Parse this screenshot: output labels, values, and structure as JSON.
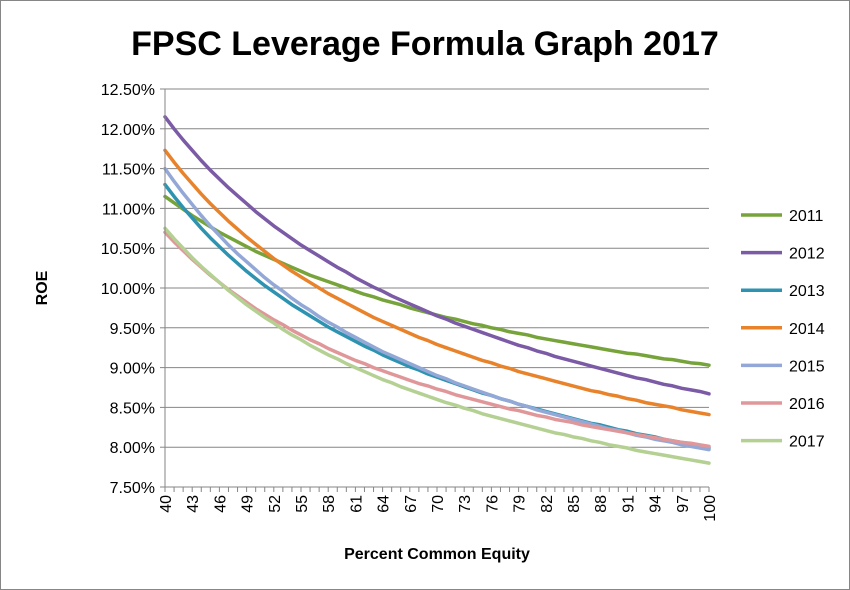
{
  "chart_data": {
    "type": "line",
    "title": "FPSC Leverage Formula Graph 2017",
    "xlabel": "Percent Common Equity",
    "ylabel": "ROE",
    "x": [
      40,
      41,
      42,
      43,
      44,
      45,
      46,
      47,
      48,
      49,
      50,
      51,
      52,
      53,
      54,
      55,
      56,
      57,
      58,
      59,
      60,
      61,
      62,
      63,
      64,
      65,
      66,
      67,
      68,
      69,
      70,
      71,
      72,
      73,
      74,
      75,
      76,
      77,
      78,
      79,
      80,
      81,
      82,
      83,
      84,
      85,
      86,
      87,
      88,
      89,
      90,
      91,
      92,
      93,
      94,
      95,
      96,
      97,
      98,
      99,
      100
    ],
    "x_tick_labels": [
      "40",
      "43",
      "46",
      "49",
      "52",
      "55",
      "58",
      "61",
      "64",
      "67",
      "70",
      "73",
      "76",
      "79",
      "82",
      "85",
      "88",
      "91",
      "94",
      "97",
      "100"
    ],
    "ylim": [
      7.5,
      12.5
    ],
    "y_tick_labels": [
      "7.50%",
      "8.00%",
      "8.50%",
      "9.00%",
      "9.50%",
      "10.00%",
      "10.50%",
      "11.00%",
      "11.50%",
      "12.00%",
      "12.50%"
    ],
    "grid": "horizontal",
    "legend_position": "right",
    "series": [
      {
        "name": "2011",
        "color": "#77A33B",
        "values": [
          11.15,
          11.07,
          10.99,
          10.91,
          10.84,
          10.77,
          10.7,
          10.64,
          10.58,
          10.52,
          10.46,
          10.41,
          10.36,
          10.31,
          10.26,
          10.21,
          10.16,
          10.12,
          10.08,
          10.04,
          10.0,
          9.96,
          9.92,
          9.89,
          9.85,
          9.82,
          9.79,
          9.75,
          9.72,
          9.69,
          9.66,
          9.63,
          9.61,
          9.58,
          9.55,
          9.53,
          9.5,
          9.48,
          9.45,
          9.43,
          9.41,
          9.38,
          9.36,
          9.34,
          9.32,
          9.3,
          9.28,
          9.26,
          9.24,
          9.22,
          9.2,
          9.18,
          9.17,
          9.15,
          9.13,
          9.11,
          9.1,
          9.08,
          9.06,
          9.05,
          9.03
        ]
      },
      {
        "name": "2012",
        "color": "#7B5AA6",
        "values": [
          12.15,
          12.0,
          11.86,
          11.73,
          11.6,
          11.48,
          11.37,
          11.26,
          11.16,
          11.06,
          10.96,
          10.87,
          10.78,
          10.7,
          10.62,
          10.54,
          10.47,
          10.4,
          10.33,
          10.26,
          10.2,
          10.13,
          10.07,
          10.01,
          9.96,
          9.9,
          9.85,
          9.8,
          9.75,
          9.7,
          9.65,
          9.61,
          9.56,
          9.52,
          9.48,
          9.44,
          9.4,
          9.36,
          9.32,
          9.28,
          9.25,
          9.21,
          9.18,
          9.14,
          9.11,
          9.08,
          9.05,
          9.02,
          8.99,
          8.96,
          8.93,
          8.9,
          8.87,
          8.85,
          8.82,
          8.79,
          8.77,
          8.74,
          8.72,
          8.7,
          8.67
        ]
      },
      {
        "name": "2013",
        "color": "#2E93B0",
        "values": [
          11.3,
          11.15,
          11.01,
          10.88,
          10.75,
          10.63,
          10.52,
          10.41,
          10.31,
          10.21,
          10.12,
          10.03,
          9.95,
          9.87,
          9.79,
          9.72,
          9.65,
          9.58,
          9.51,
          9.45,
          9.39,
          9.33,
          9.27,
          9.22,
          9.16,
          9.11,
          9.06,
          9.01,
          8.97,
          8.92,
          8.88,
          8.84,
          8.8,
          8.76,
          8.72,
          8.68,
          8.65,
          8.61,
          8.58,
          8.54,
          8.51,
          8.48,
          8.45,
          8.42,
          8.39,
          8.36,
          8.33,
          8.3,
          8.28,
          8.25,
          8.22,
          8.2,
          8.17,
          8.15,
          8.13,
          8.1,
          8.08,
          8.06,
          8.04,
          8.01,
          7.99
        ]
      },
      {
        "name": "2014",
        "color": "#E8832B",
        "values": [
          11.73,
          11.58,
          11.44,
          11.31,
          11.18,
          11.06,
          10.95,
          10.84,
          10.74,
          10.64,
          10.55,
          10.46,
          10.37,
          10.29,
          10.21,
          10.14,
          10.07,
          10.0,
          9.93,
          9.87,
          9.81,
          9.75,
          9.69,
          9.63,
          9.58,
          9.53,
          9.48,
          9.43,
          9.38,
          9.34,
          9.29,
          9.25,
          9.21,
          9.17,
          9.13,
          9.09,
          9.06,
          9.02,
          8.99,
          8.95,
          8.92,
          8.89,
          8.86,
          8.83,
          8.8,
          8.77,
          8.74,
          8.71,
          8.69,
          8.66,
          8.64,
          8.61,
          8.59,
          8.56,
          8.54,
          8.52,
          8.5,
          8.47,
          8.45,
          8.43,
          8.41
        ]
      },
      {
        "name": "2015",
        "color": "#93A8D6",
        "values": [
          11.5,
          11.34,
          11.19,
          11.05,
          10.91,
          10.78,
          10.66,
          10.54,
          10.43,
          10.33,
          10.23,
          10.13,
          10.04,
          9.96,
          9.87,
          9.79,
          9.72,
          9.64,
          9.57,
          9.51,
          9.44,
          9.38,
          9.32,
          9.26,
          9.2,
          9.15,
          9.1,
          9.05,
          9.0,
          8.95,
          8.9,
          8.86,
          8.81,
          8.77,
          8.73,
          8.69,
          8.65,
          8.61,
          8.58,
          8.54,
          8.51,
          8.47,
          8.44,
          8.41,
          8.38,
          8.35,
          8.32,
          8.29,
          8.26,
          8.23,
          8.21,
          8.18,
          8.15,
          8.13,
          8.1,
          8.08,
          8.06,
          8.03,
          8.01,
          7.99,
          7.97
        ]
      },
      {
        "name": "2016",
        "color": "#E0979A",
        "values": [
          10.7,
          10.58,
          10.47,
          10.36,
          10.26,
          10.16,
          10.07,
          9.98,
          9.9,
          9.82,
          9.74,
          9.67,
          9.6,
          9.54,
          9.47,
          9.41,
          9.35,
          9.3,
          9.24,
          9.19,
          9.14,
          9.09,
          9.05,
          9.0,
          8.96,
          8.92,
          8.88,
          8.84,
          8.8,
          8.77,
          8.73,
          8.7,
          8.66,
          8.63,
          8.6,
          8.57,
          8.54,
          8.51,
          8.48,
          8.46,
          8.43,
          8.4,
          8.38,
          8.35,
          8.33,
          8.31,
          8.28,
          8.26,
          8.24,
          8.22,
          8.2,
          8.18,
          8.16,
          8.14,
          8.12,
          8.1,
          8.08,
          8.06,
          8.05,
          8.03,
          8.01
        ]
      },
      {
        "name": "2017",
        "color": "#B4D092",
        "values": [
          10.75,
          10.62,
          10.5,
          10.38,
          10.27,
          10.17,
          10.07,
          9.97,
          9.88,
          9.79,
          9.71,
          9.63,
          9.56,
          9.48,
          9.41,
          9.35,
          9.28,
          9.22,
          9.16,
          9.11,
          9.05,
          9.0,
          8.95,
          8.9,
          8.85,
          8.81,
          8.76,
          8.72,
          8.68,
          8.64,
          8.6,
          8.56,
          8.53,
          8.49,
          8.46,
          8.42,
          8.39,
          8.36,
          8.33,
          8.3,
          8.27,
          8.24,
          8.21,
          8.18,
          8.16,
          8.13,
          8.11,
          8.08,
          8.06,
          8.03,
          8.01,
          7.99,
          7.96,
          7.94,
          7.92,
          7.9,
          7.88,
          7.86,
          7.84,
          7.82,
          7.8
        ]
      }
    ]
  }
}
